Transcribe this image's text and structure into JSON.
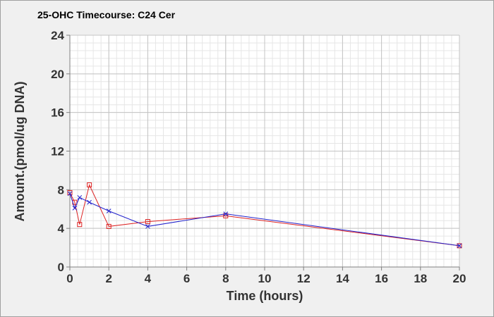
{
  "chart_data": {
    "type": "line",
    "title": "25-OHC Timecourse: C24 Cer",
    "xlabel": "Time (hours)",
    "ylabel": "Amount.(pmol/ug DNA)",
    "xlim": [
      0,
      20
    ],
    "ylim": [
      0,
      24
    ],
    "xticks": [
      0,
      2,
      4,
      6,
      8,
      10,
      12,
      14,
      16,
      18,
      20
    ],
    "yticks": [
      0,
      4,
      8,
      12,
      16,
      20,
      24
    ],
    "grid": true,
    "minor_grid": true,
    "series": [
      {
        "marker": "square",
        "color": "#dd2222",
        "points": [
          {
            "x": 0,
            "y": 7.7
          },
          {
            "x": 0.25,
            "y": 6.7
          },
          {
            "x": 0.5,
            "y": 4.4
          },
          {
            "x": 1,
            "y": 8.5
          },
          {
            "x": 2,
            "y": 4.2
          },
          {
            "x": 4,
            "y": 4.7
          },
          {
            "x": 8,
            "y": 5.3
          },
          {
            "x": 20,
            "y": 2.2
          }
        ]
      },
      {
        "marker": "cross",
        "color": "#2222cc",
        "points": [
          {
            "x": 0,
            "y": 7.6
          },
          {
            "x": 0.25,
            "y": 6.1
          },
          {
            "x": 0.5,
            "y": 7.2
          },
          {
            "x": 1,
            "y": 6.7
          },
          {
            "x": 2,
            "y": 5.8
          },
          {
            "x": 4,
            "y": 4.2
          },
          {
            "x": 8,
            "y": 5.5
          },
          {
            "x": 20,
            "y": 2.2
          }
        ]
      }
    ]
  }
}
